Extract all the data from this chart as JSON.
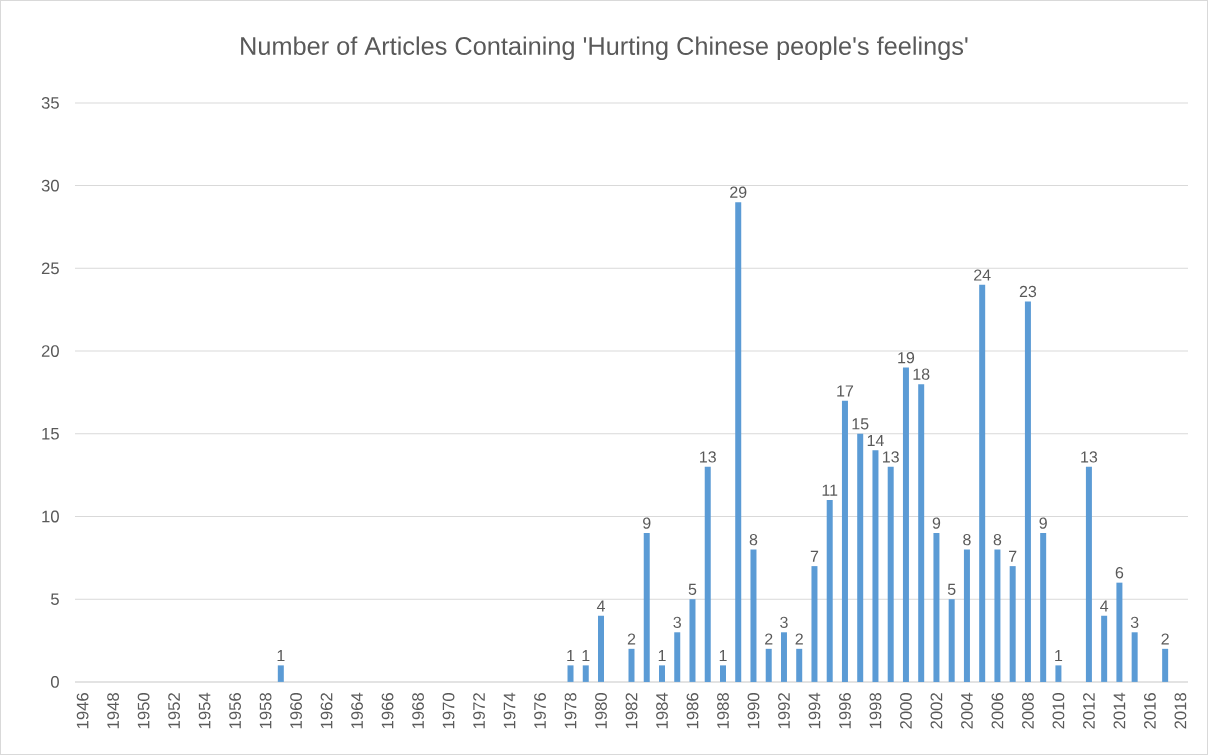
{
  "chart_data": {
    "type": "bar",
    "title": "Number of Articles Containing 'Hurting Chinese people's feelings'",
    "categories": [
      "1946",
      null,
      "1948",
      null,
      "1950",
      null,
      "1952",
      null,
      "1954",
      null,
      "1956",
      null,
      "1958",
      null,
      "1960",
      null,
      "1962",
      null,
      "1964",
      null,
      "1966",
      null,
      "1968",
      null,
      "1970",
      null,
      "1972",
      null,
      "1974",
      null,
      "1976",
      null,
      "1978",
      null,
      "1980",
      null,
      "1982",
      null,
      "1984",
      null,
      "1986",
      null,
      "1988",
      null,
      "1990",
      null,
      "1992",
      null,
      "1994",
      null,
      "1996",
      null,
      "1998",
      null,
      "2000",
      null,
      "2002",
      null,
      "2004",
      null,
      "2006",
      null,
      "2008",
      null,
      "2010",
      null,
      "2012",
      null,
      "2014",
      null,
      "2016",
      null,
      "2018"
    ],
    "values": [
      0,
      0,
      0,
      0,
      0,
      0,
      0,
      0,
      0,
      0,
      0,
      0,
      0,
      1,
      0,
      0,
      0,
      0,
      0,
      0,
      0,
      0,
      0,
      0,
      0,
      0,
      0,
      0,
      0,
      0,
      0,
      0,
      1,
      1,
      4,
      0,
      2,
      9,
      1,
      3,
      5,
      13,
      1,
      29,
      8,
      2,
      3,
      2,
      7,
      11,
      17,
      15,
      14,
      13,
      19,
      18,
      9,
      5,
      8,
      24,
      8,
      7,
      23,
      9,
      1,
      0,
      13,
      4,
      6,
      3,
      0,
      2,
      0
    ],
    "value_labels": [
      null,
      null,
      null,
      null,
      null,
      null,
      null,
      null,
      null,
      null,
      null,
      null,
      null,
      "1",
      null,
      null,
      null,
      null,
      null,
      null,
      null,
      null,
      null,
      null,
      null,
      null,
      null,
      null,
      null,
      null,
      null,
      null,
      "1",
      "1",
      "4",
      null,
      "2",
      "9",
      "1",
      "3",
      "5",
      "13",
      "1",
      "29",
      "8",
      "2",
      "3",
      "2",
      "7",
      "11",
      "17",
      "15",
      "14",
      "13",
      "19",
      "18",
      "9",
      "5",
      "8",
      "24",
      "8",
      "7",
      "23",
      "9",
      "1",
      null,
      "13",
      "4",
      "6",
      "3",
      null,
      "2",
      null
    ],
    "color": "#5b9bd5",
    "ylim": [
      0,
      35
    ],
    "yticks": [
      0,
      5,
      10,
      15,
      20,
      25,
      30,
      35
    ],
    "grid": "y"
  }
}
